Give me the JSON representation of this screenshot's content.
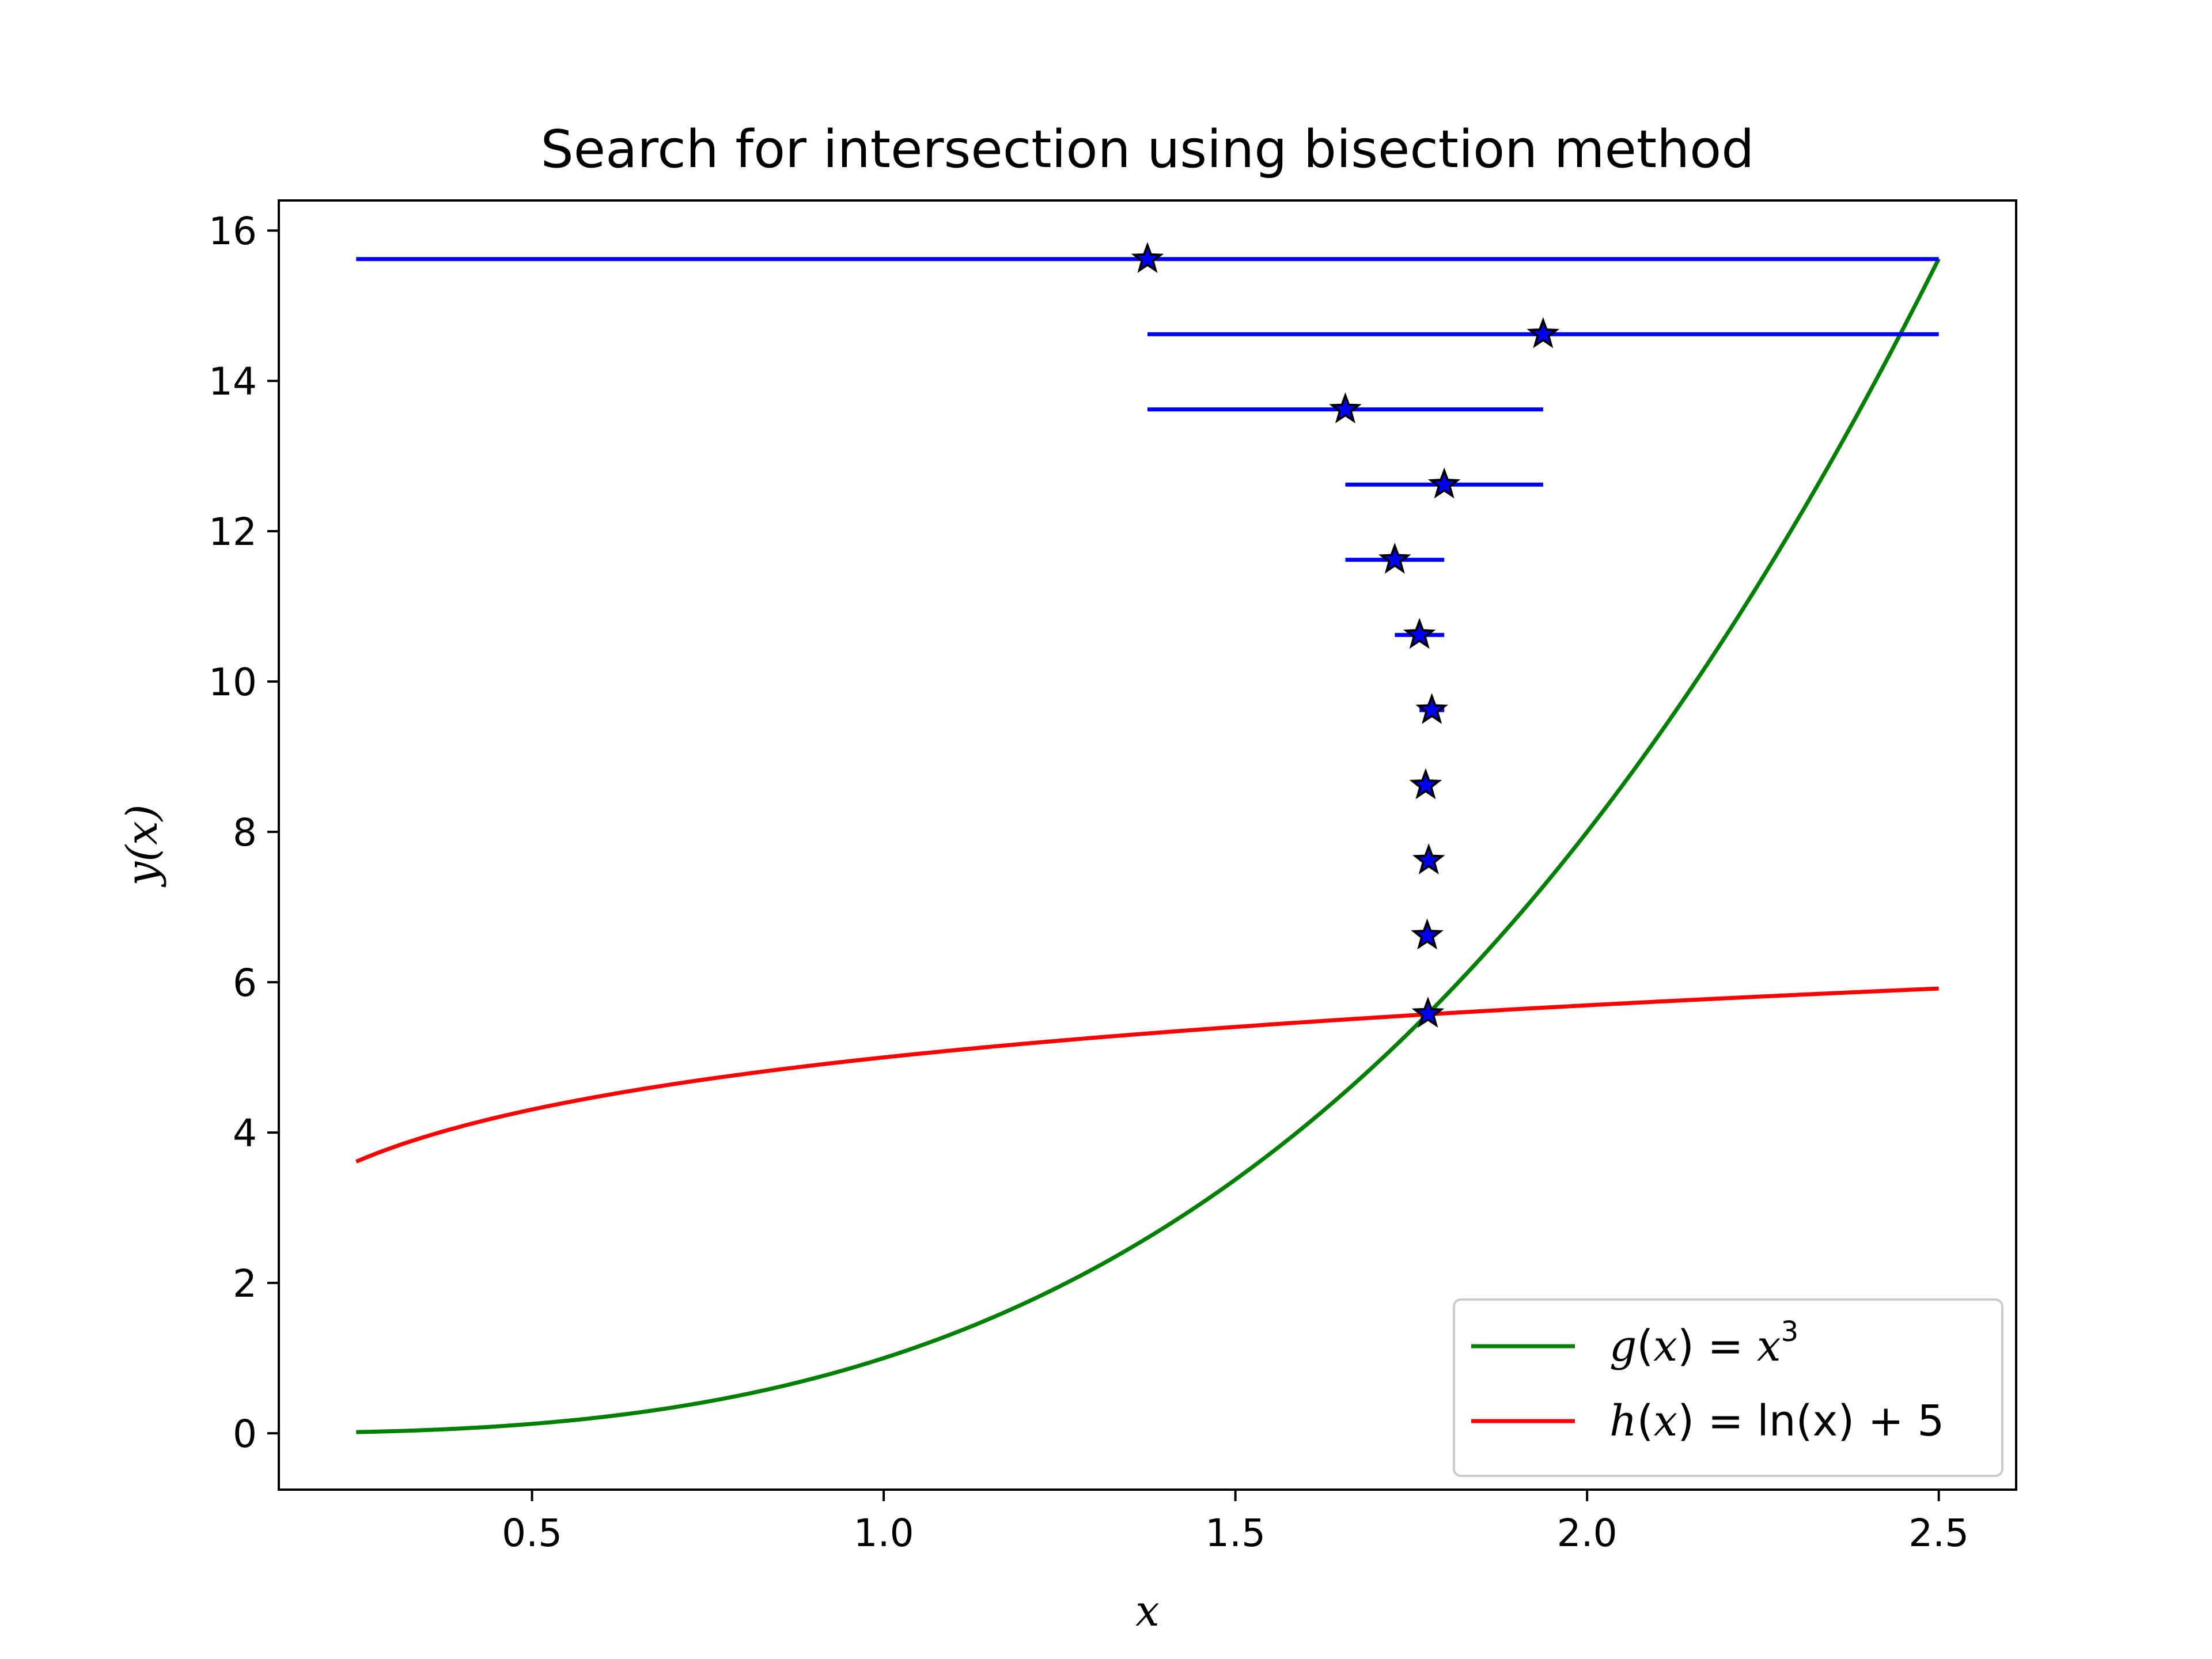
{
  "chart_data": {
    "type": "line",
    "title": "Search for intersection using bisection method",
    "xlabel": "x",
    "ylabel": "y(x)",
    "xlim": [
      0.14,
      2.61
    ],
    "ylim": [
      -0.75,
      16.4
    ],
    "xticks": [
      0.5,
      1.0,
      1.5,
      2.0,
      2.5
    ],
    "xtick_labels": [
      "0.5",
      "1.0",
      "1.5",
      "2.0",
      "2.5"
    ],
    "yticks": [
      0,
      2,
      4,
      6,
      8,
      10,
      12,
      14,
      16
    ],
    "ytick_labels": [
      "0",
      "2",
      "4",
      "6",
      "8",
      "10",
      "12",
      "14",
      "16"
    ],
    "grid": false,
    "legend_position": "bottom-right",
    "series": [
      {
        "name": "g(x) = x³",
        "legend": {
          "fn": "g",
          "rhs": "x",
          "sup": "3"
        },
        "color": "#008000",
        "function": "cube",
        "x_range": [
          0.25,
          2.5
        ]
      },
      {
        "name": "h(x) = ln(x) + 5",
        "legend": {
          "fn": "h",
          "rhs": "ln(x) + 5"
        },
        "color": "#ff0000",
        "function": "log_plus_5",
        "x_range": [
          0.25,
          2.5
        ]
      }
    ],
    "bisection_intervals": {
      "color": "#0000ff",
      "items": [
        {
          "a": 0.25,
          "b": 2.5,
          "mid": 1.375,
          "y": 15.62
        },
        {
          "a": 1.375,
          "b": 2.5,
          "mid": 1.9375,
          "y": 14.62
        },
        {
          "a": 1.375,
          "b": 1.9375,
          "mid": 1.6563,
          "y": 13.62
        },
        {
          "a": 1.6563,
          "b": 1.9375,
          "mid": 1.7969,
          "y": 12.62
        },
        {
          "a": 1.6563,
          "b": 1.7969,
          "mid": 1.7266,
          "y": 11.62
        },
        {
          "a": 1.7266,
          "b": 1.7969,
          "mid": 1.7617,
          "y": 10.62
        },
        {
          "a": 1.7617,
          "b": 1.7969,
          "mid": 1.7793,
          "y": 9.62
        },
        {
          "a": 1.7617,
          "b": 1.7793,
          "mid": 1.7705,
          "y": 8.62
        },
        {
          "a": 1.7705,
          "b": 1.7793,
          "mid": 1.7749,
          "y": 7.62
        },
        {
          "a": 1.7705,
          "b": 1.7749,
          "mid": 1.7727,
          "y": 6.62
        },
        {
          "a": 1.7727,
          "b": 1.7749,
          "mid": 1.7738,
          "y": 5.58
        }
      ]
    }
  }
}
